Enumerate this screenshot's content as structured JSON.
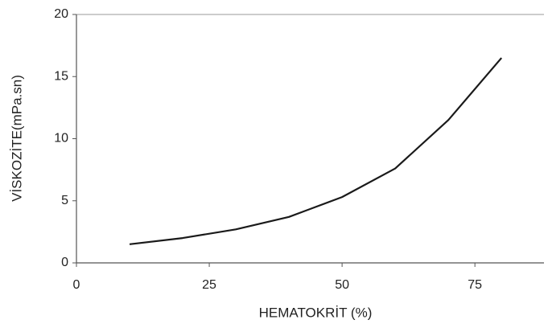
{
  "chart_data": {
    "type": "line",
    "xlabel": "HEMATOKRİT (%)",
    "ylabel": "VİSKOZİTE(mPa.sn)",
    "x": [
      10,
      20,
      30,
      40,
      50,
      60,
      70,
      80
    ],
    "series": [
      {
        "color": "#1a1a1a",
        "values": [
          1.5,
          2.0,
          2.7,
          3.7,
          5.3,
          7.6,
          11.5,
          16.5
        ]
      }
    ],
    "xlim": [
      0,
      88
    ],
    "xticks": [
      0,
      25,
      50,
      75
    ],
    "ylim": [
      0,
      20
    ],
    "yticks": [
      0,
      5,
      10,
      15,
      20
    ]
  }
}
